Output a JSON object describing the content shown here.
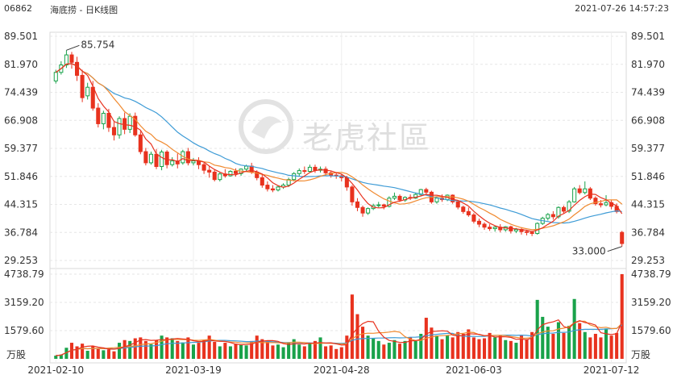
{
  "header": {
    "code": "06862",
    "title": "海底捞 - 日K线图",
    "datetime": "2021-07-26 14:57:23"
  },
  "watermark": {
    "text": "老虎社區"
  },
  "colors": {
    "up": "#19a24a",
    "down": "#e8321e",
    "ma5": "#e8321e",
    "ma10": "#f08a30",
    "ma20": "#3d9bd6"
  },
  "chart_data": {
    "type": "candlestick",
    "price_axis": {
      "ticks": [
        "89.501",
        "81.970",
        "74.439",
        "66.908",
        "59.377",
        "51.846",
        "44.315",
        "36.784",
        "29.253"
      ],
      "range": [
        29.253,
        89.501
      ]
    },
    "volume_axis": {
      "ticks": [
        "4738.79",
        "3159.20",
        "1579.60"
      ],
      "unit": "万股",
      "range": [
        0,
        4738.79
      ]
    },
    "x_ticks": [
      "2021-02-10",
      "2021-03-19",
      "2021-04-28",
      "2021-06-03",
      "2021-07-12"
    ],
    "annotations": {
      "high": "85.754",
      "low": "33.000"
    },
    "candles": [
      [
        77.5,
        80.5,
        79.8,
        76.8,
        180
      ],
      [
        79.8,
        82.8,
        81.8,
        79.2,
        240
      ],
      [
        81.8,
        85.754,
        84.5,
        81.0,
        620
      ],
      [
        84.5,
        85.3,
        82.5,
        80.8,
        900
      ],
      [
        82.5,
        84.0,
        79.0,
        77.5,
        700
      ],
      [
        79.0,
        80.5,
        73.0,
        71.8,
        850
      ],
      [
        73.5,
        77.0,
        75.8,
        72.5,
        450
      ],
      [
        75.8,
        77.5,
        70.2,
        69.5,
        700
      ],
      [
        70.2,
        71.5,
        66.0,
        65.0,
        580
      ],
      [
        66.0,
        69.5,
        68.8,
        64.5,
        480
      ],
      [
        68.8,
        70.0,
        65.0,
        63.8,
        520
      ],
      [
        65.0,
        66.5,
        63.0,
        61.5,
        420
      ],
      [
        63.0,
        68.0,
        67.4,
        62.0,
        900
      ],
      [
        67.4,
        69.0,
        64.5,
        63.2,
        1050
      ],
      [
        64.5,
        68.8,
        68.0,
        63.5,
        1000
      ],
      [
        68.0,
        69.0,
        63.0,
        62.5,
        1150
      ],
      [
        63.0,
        64.0,
        58.5,
        57.8,
        1200
      ],
      [
        58.5,
        59.5,
        55.5,
        54.8,
        1000
      ],
      [
        55.5,
        58.5,
        57.8,
        55.0,
        820
      ],
      [
        57.8,
        59.2,
        54.5,
        53.8,
        1050
      ],
      [
        54.5,
        59.0,
        58.4,
        53.5,
        1300
      ],
      [
        58.4,
        58.9,
        55.0,
        54.0,
        1200
      ],
      [
        55.0,
        57.0,
        56.0,
        54.5,
        1150
      ],
      [
        56.0,
        58.0,
        55.2,
        54.0,
        1000
      ],
      [
        55.5,
        59.0,
        58.5,
        55.0,
        920
      ],
      [
        58.5,
        59.5,
        55.5,
        54.8,
        1200
      ],
      [
        55.5,
        56.8,
        56.0,
        54.8,
        800
      ],
      [
        56.0,
        57.0,
        55.0,
        53.8,
        900
      ],
      [
        55.0,
        55.5,
        53.5,
        52.5,
        1050
      ],
      [
        53.5,
        54.5,
        53.0,
        51.5,
        1300
      ],
      [
        53.0,
        53.8,
        51.0,
        50.5,
        950
      ],
      [
        51.0,
        53.0,
        52.5,
        50.5,
        700
      ],
      [
        52.5,
        53.8,
        52.0,
        51.5,
        900
      ],
      [
        52.0,
        53.5,
        53.2,
        51.8,
        700
      ],
      [
        53.2,
        54.0,
        52.6,
        51.8,
        850
      ],
      [
        52.6,
        54.0,
        53.8,
        52.0,
        800
      ],
      [
        53.8,
        55.0,
        54.6,
        53.2,
        750
      ],
      [
        54.6,
        55.5,
        53.0,
        52.5,
        1000
      ],
      [
        53.0,
        53.5,
        51.5,
        50.8,
        1300
      ],
      [
        51.5,
        52.5,
        49.5,
        48.8,
        1100
      ],
      [
        49.5,
        50.5,
        48.5,
        47.8,
        950
      ],
      [
        48.5,
        49.5,
        48.2,
        47.6,
        750
      ],
      [
        48.2,
        49.5,
        49.0,
        47.8,
        800
      ],
      [
        49.0,
        50.0,
        49.5,
        48.5,
        650
      ],
      [
        49.5,
        51.5,
        51.0,
        49.0,
        900
      ],
      [
        51.0,
        53.0,
        52.6,
        50.5,
        1100
      ],
      [
        52.6,
        54.0,
        53.4,
        52.0,
        800
      ],
      [
        53.4,
        54.5,
        53.2,
        52.5,
        700
      ],
      [
        53.2,
        55.0,
        54.3,
        52.8,
        850
      ],
      [
        54.3,
        55.0,
        53.5,
        52.8,
        1000
      ],
      [
        53.5,
        54.5,
        53.8,
        52.9,
        1200
      ],
      [
        53.8,
        54.5,
        52.8,
        52.0,
        700
      ],
      [
        52.8,
        53.4,
        52.2,
        51.5,
        750
      ],
      [
        52.2,
        53.0,
        52.0,
        51.2,
        550
      ],
      [
        52.0,
        52.5,
        51.5,
        50.5,
        650
      ],
      [
        51.5,
        52.0,
        49.0,
        48.0,
        1300
      ],
      [
        49.0,
        49.5,
        45.0,
        44.0,
        3600
      ],
      [
        45.0,
        46.0,
        43.5,
        42.5,
        2500
      ],
      [
        43.5,
        44.0,
        42.0,
        41.0,
        1800
      ],
      [
        42.0,
        43.5,
        43.2,
        41.5,
        1300
      ],
      [
        43.2,
        44.5,
        44.0,
        42.8,
        1150
      ],
      [
        44.0,
        45.0,
        44.2,
        43.5,
        1000
      ],
      [
        44.2,
        44.5,
        43.8,
        43.0,
        800
      ],
      [
        43.8,
        46.5,
        46.0,
        43.5,
        900
      ],
      [
        46.0,
        47.5,
        46.5,
        45.5,
        1050
      ],
      [
        46.5,
        47.0,
        45.5,
        45.0,
        850
      ],
      [
        45.5,
        46.5,
        46.2,
        45.0,
        1000
      ],
      [
        46.2,
        47.0,
        46.0,
        45.5,
        1200
      ],
      [
        46.0,
        47.5,
        47.0,
        45.8,
        1000
      ],
      [
        47.0,
        48.5,
        48.3,
        46.5,
        1400
      ],
      [
        48.3,
        48.8,
        47.6,
        46.8,
        2300
      ],
      [
        47.6,
        48.0,
        45.0,
        44.5,
        1750
      ],
      [
        45.0,
        46.5,
        46.0,
        44.5,
        1300
      ],
      [
        46.0,
        47.0,
        45.6,
        45.0,
        1100
      ],
      [
        45.6,
        47.0,
        46.8,
        45.2,
        1300
      ],
      [
        46.8,
        47.0,
        45.0,
        44.5,
        1200
      ],
      [
        45.0,
        45.5,
        43.6,
        43.0,
        1500
      ],
      [
        43.6,
        44.0,
        42.4,
        41.8,
        1400
      ],
      [
        42.4,
        43.5,
        41.5,
        41.0,
        1650
      ],
      [
        41.5,
        42.0,
        39.8,
        39.2,
        1200
      ],
      [
        39.8,
        40.5,
        39.0,
        38.2,
        1100
      ],
      [
        39.0,
        39.5,
        38.2,
        37.5,
        1150
      ],
      [
        38.2,
        39.0,
        37.8,
        37.2,
        1450
      ],
      [
        37.8,
        38.5,
        38.2,
        37.0,
        1200
      ],
      [
        38.2,
        39.0,
        37.5,
        36.8,
        1300
      ],
      [
        37.5,
        38.5,
        38.3,
        37.0,
        1050
      ],
      [
        38.3,
        38.6,
        37.2,
        36.5,
        1000
      ],
      [
        37.2,
        38.0,
        37.6,
        36.6,
        900
      ],
      [
        37.6,
        38.2,
        37.0,
        36.2,
        1300
      ],
      [
        37.0,
        37.5,
        36.8,
        36.0,
        1100
      ],
      [
        36.8,
        37.2,
        36.5,
        35.8,
        1500
      ],
      [
        36.5,
        39.5,
        39.2,
        36.2,
        3300
      ],
      [
        39.2,
        41.0,
        40.6,
        38.8,
        2350
      ],
      [
        40.6,
        42.0,
        41.6,
        40.0,
        1800
      ],
      [
        41.6,
        42.5,
        41.0,
        40.2,
        1400
      ],
      [
        41.0,
        43.8,
        43.5,
        40.5,
        2050
      ],
      [
        43.5,
        44.0,
        42.5,
        41.8,
        1450
      ],
      [
        42.5,
        45.5,
        45.0,
        42.0,
        1850
      ],
      [
        45.0,
        49.0,
        48.5,
        44.8,
        3350
      ],
      [
        48.5,
        49.5,
        47.5,
        47.0,
        2000
      ],
      [
        47.5,
        50.5,
        48.5,
        47.0,
        1500
      ],
      [
        48.5,
        49.0,
        46.0,
        45.5,
        1200
      ],
      [
        46.0,
        46.5,
        44.5,
        44.0,
        1400
      ],
      [
        44.5,
        45.5,
        44.2,
        43.5,
        1200
      ],
      [
        44.2,
        46.8,
        44.8,
        43.8,
        1700
      ],
      [
        44.8,
        45.5,
        43.8,
        43.0,
        1300
      ],
      [
        43.8,
        44.6,
        42.4,
        41.9,
        1450
      ],
      [
        36.8,
        37.2,
        33.8,
        33.0,
        4738.79
      ]
    ]
  }
}
